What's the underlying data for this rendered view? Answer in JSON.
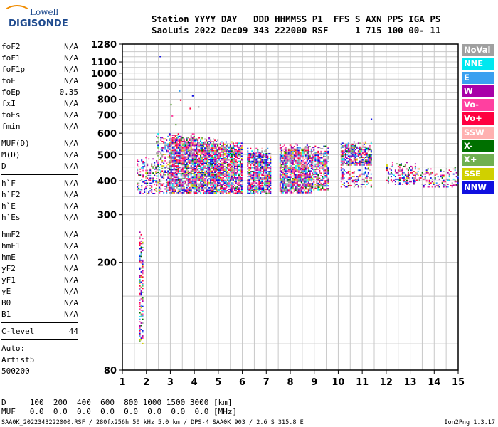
{
  "logo": {
    "line1": "Lowell",
    "line2": "DIGISONDE"
  },
  "header": {
    "line1": "Station YYYY DAY   DDD HHMMSS P1  FFS S AXN PPS IGA PS",
    "line2": "SaoLuis 2022 Dec09 343 222000 RSF     1 715 100 00- 11"
  },
  "params": {
    "group1": [
      {
        "name": "foF2",
        "value": "N/A"
      },
      {
        "name": "foF1",
        "value": "N/A"
      },
      {
        "name": "foF1p",
        "value": "N/A"
      },
      {
        "name": "foE",
        "value": "N/A"
      },
      {
        "name": "foEp",
        "value": "0.35"
      },
      {
        "name": "fxI",
        "value": "N/A"
      },
      {
        "name": "foEs",
        "value": "N/A"
      },
      {
        "name": "fmin",
        "value": "N/A"
      }
    ],
    "group2": [
      {
        "name": "MUF(D)",
        "value": "N/A"
      },
      {
        "name": "M(D)",
        "value": "N/A"
      },
      {
        "name": "D",
        "value": "N/A"
      }
    ],
    "group3": [
      {
        "name": "h`F",
        "value": "N/A"
      },
      {
        "name": "h`F2",
        "value": "N/A"
      },
      {
        "name": "h`E",
        "value": "N/A"
      },
      {
        "name": "h`Es",
        "value": "N/A"
      }
    ],
    "group4": [
      {
        "name": "hmF2",
        "value": "N/A"
      },
      {
        "name": "hmF1",
        "value": "N/A"
      },
      {
        "name": "hmE",
        "value": "N/A"
      },
      {
        "name": "yF2",
        "value": "N/A"
      },
      {
        "name": "yF1",
        "value": "N/A"
      },
      {
        "name": "yE",
        "value": "N/A"
      },
      {
        "name": "B0",
        "value": "N/A"
      },
      {
        "name": "B1",
        "value": "N/A"
      }
    ],
    "clevel": {
      "name": "C-level",
      "value": "44"
    },
    "auto": [
      "Auto:",
      "Artist5",
      "500200"
    ]
  },
  "footer": {
    "d_row": "D     100  200  400  600  800 1000 1500 3000 [km]",
    "muf_row": "MUF   0.0  0.0  0.0  0.0  0.0  0.0  0.0  0.0 [MHz]",
    "file_info": "SAA0K_2022343222000.RSF / 280fx256h 50 kHz 5.0 km / DPS-4 SAA0K 903 / 2.6 S 315.8 E",
    "version": "Ion2Png 1.3.17"
  },
  "legend": [
    {
      "label": "NoVal",
      "color": "#a0a0a0"
    },
    {
      "label": "NNE",
      "color": "#00e8f0"
    },
    {
      "label": "E",
      "color": "#3aa0f0"
    },
    {
      "label": "W",
      "color": "#a800a8"
    },
    {
      "label": "Vo-",
      "color": "#ff40a0"
    },
    {
      "label": "Vo+",
      "color": "#ff0040"
    },
    {
      "label": "SSW",
      "color": "#ffb0b0"
    },
    {
      "label": "X-",
      "color": "#007000"
    },
    {
      "label": "X+",
      "color": "#70b050"
    },
    {
      "label": "SSE",
      "color": "#d0d000"
    },
    {
      "label": "NNW",
      "color": "#1010e0"
    }
  ],
  "chart_data": {
    "type": "scatter",
    "x": {
      "min": 1,
      "max": 15,
      "ticks": [
        1,
        2,
        3,
        4,
        5,
        6,
        7,
        8,
        9,
        10,
        11,
        12,
        13,
        14,
        15
      ]
    },
    "y": {
      "min": 80,
      "max": 1280,
      "scale": "log",
      "ticks": [
        80,
        200,
        300,
        400,
        500,
        600,
        700,
        800,
        900,
        1000,
        1100,
        1280
      ]
    },
    "grid": true,
    "units": {
      "x": "MHz",
      "y": "km"
    },
    "clusters": [
      {
        "fmin": 1.7,
        "fmax": 1.85,
        "hmin": 100,
        "hmax": 260,
        "density": 0.5
      },
      {
        "fmin": 1.6,
        "fmax": 2.4,
        "hmin": 360,
        "hmax": 490,
        "density": 0.35
      },
      {
        "fmin": 2.4,
        "fmax": 2.95,
        "hmin": 360,
        "hmax": 600,
        "density": 0.35
      },
      {
        "fmin": 2.95,
        "fmax": 4.0,
        "hmin": 360,
        "hmax": 600,
        "density": 0.8
      },
      {
        "fmin": 4.0,
        "fmax": 5.0,
        "hmin": 360,
        "hmax": 580,
        "density": 0.85
      },
      {
        "fmin": 5.0,
        "fmax": 5.95,
        "hmin": 360,
        "hmax": 560,
        "density": 0.8
      },
      {
        "fmin": 6.2,
        "fmax": 7.2,
        "hmin": 360,
        "hmax": 530,
        "density": 0.78
      },
      {
        "fmin": 7.55,
        "fmax": 8.9,
        "hmin": 360,
        "hmax": 550,
        "density": 0.8
      },
      {
        "fmin": 8.9,
        "fmax": 9.6,
        "hmin": 370,
        "hmax": 540,
        "density": 0.6
      },
      {
        "fmin": 10.1,
        "fmax": 11.4,
        "hmin": 460,
        "hmax": 560,
        "density": 0.75
      },
      {
        "fmin": 10.1,
        "fmax": 11.4,
        "hmin": 380,
        "hmax": 460,
        "density": 0.35
      },
      {
        "fmin": 12.0,
        "fmax": 13.3,
        "hmin": 390,
        "hmax": 470,
        "density": 0.4
      },
      {
        "fmin": 13.3,
        "fmax": 15.0,
        "hmin": 380,
        "hmax": 450,
        "density": 0.3
      }
    ],
    "outliers": [
      {
        "f": 2.55,
        "h": 1160
      },
      {
        "f": 3.35,
        "h": 865
      },
      {
        "f": 3.9,
        "h": 830
      },
      {
        "f": 3.4,
        "h": 800
      },
      {
        "f": 3.0,
        "h": 770
      },
      {
        "f": 3.8,
        "h": 745
      },
      {
        "f": 4.15,
        "h": 755
      },
      {
        "f": 3.05,
        "h": 700
      },
      {
        "f": 11.35,
        "h": 680
      },
      {
        "f": 3.2,
        "h": 650
      }
    ]
  }
}
